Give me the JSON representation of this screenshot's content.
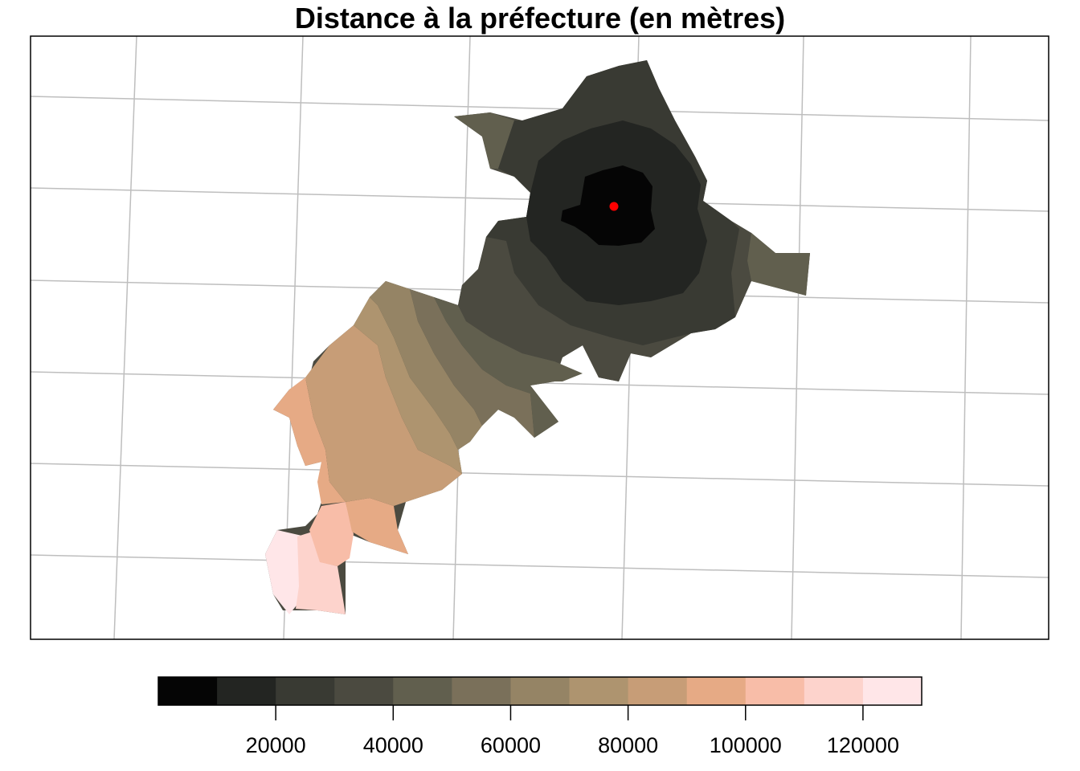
{
  "title": "Distance à la préfecture (en mètres)",
  "marker": {
    "color": "#ff0000"
  },
  "grid": {
    "visible": true,
    "color": "#bebebe"
  },
  "legend": {
    "placement": "bottom",
    "breaks": [
      0,
      10000,
      20000,
      30000,
      40000,
      50000,
      60000,
      70000,
      80000,
      90000,
      100000,
      110000,
      120000,
      130000
    ],
    "colors": [
      "#050505",
      "#232522",
      "#393a33",
      "#4b4a40",
      "#615f4e",
      "#7a705a",
      "#958465",
      "#ae946f",
      "#c79d77",
      "#e6aa85",
      "#f8bda8",
      "#fdd3cc",
      "#ffe6e8"
    ],
    "ticks": [
      "20000",
      "40000",
      "60000",
      "80000",
      "100000",
      "120000"
    ]
  }
}
